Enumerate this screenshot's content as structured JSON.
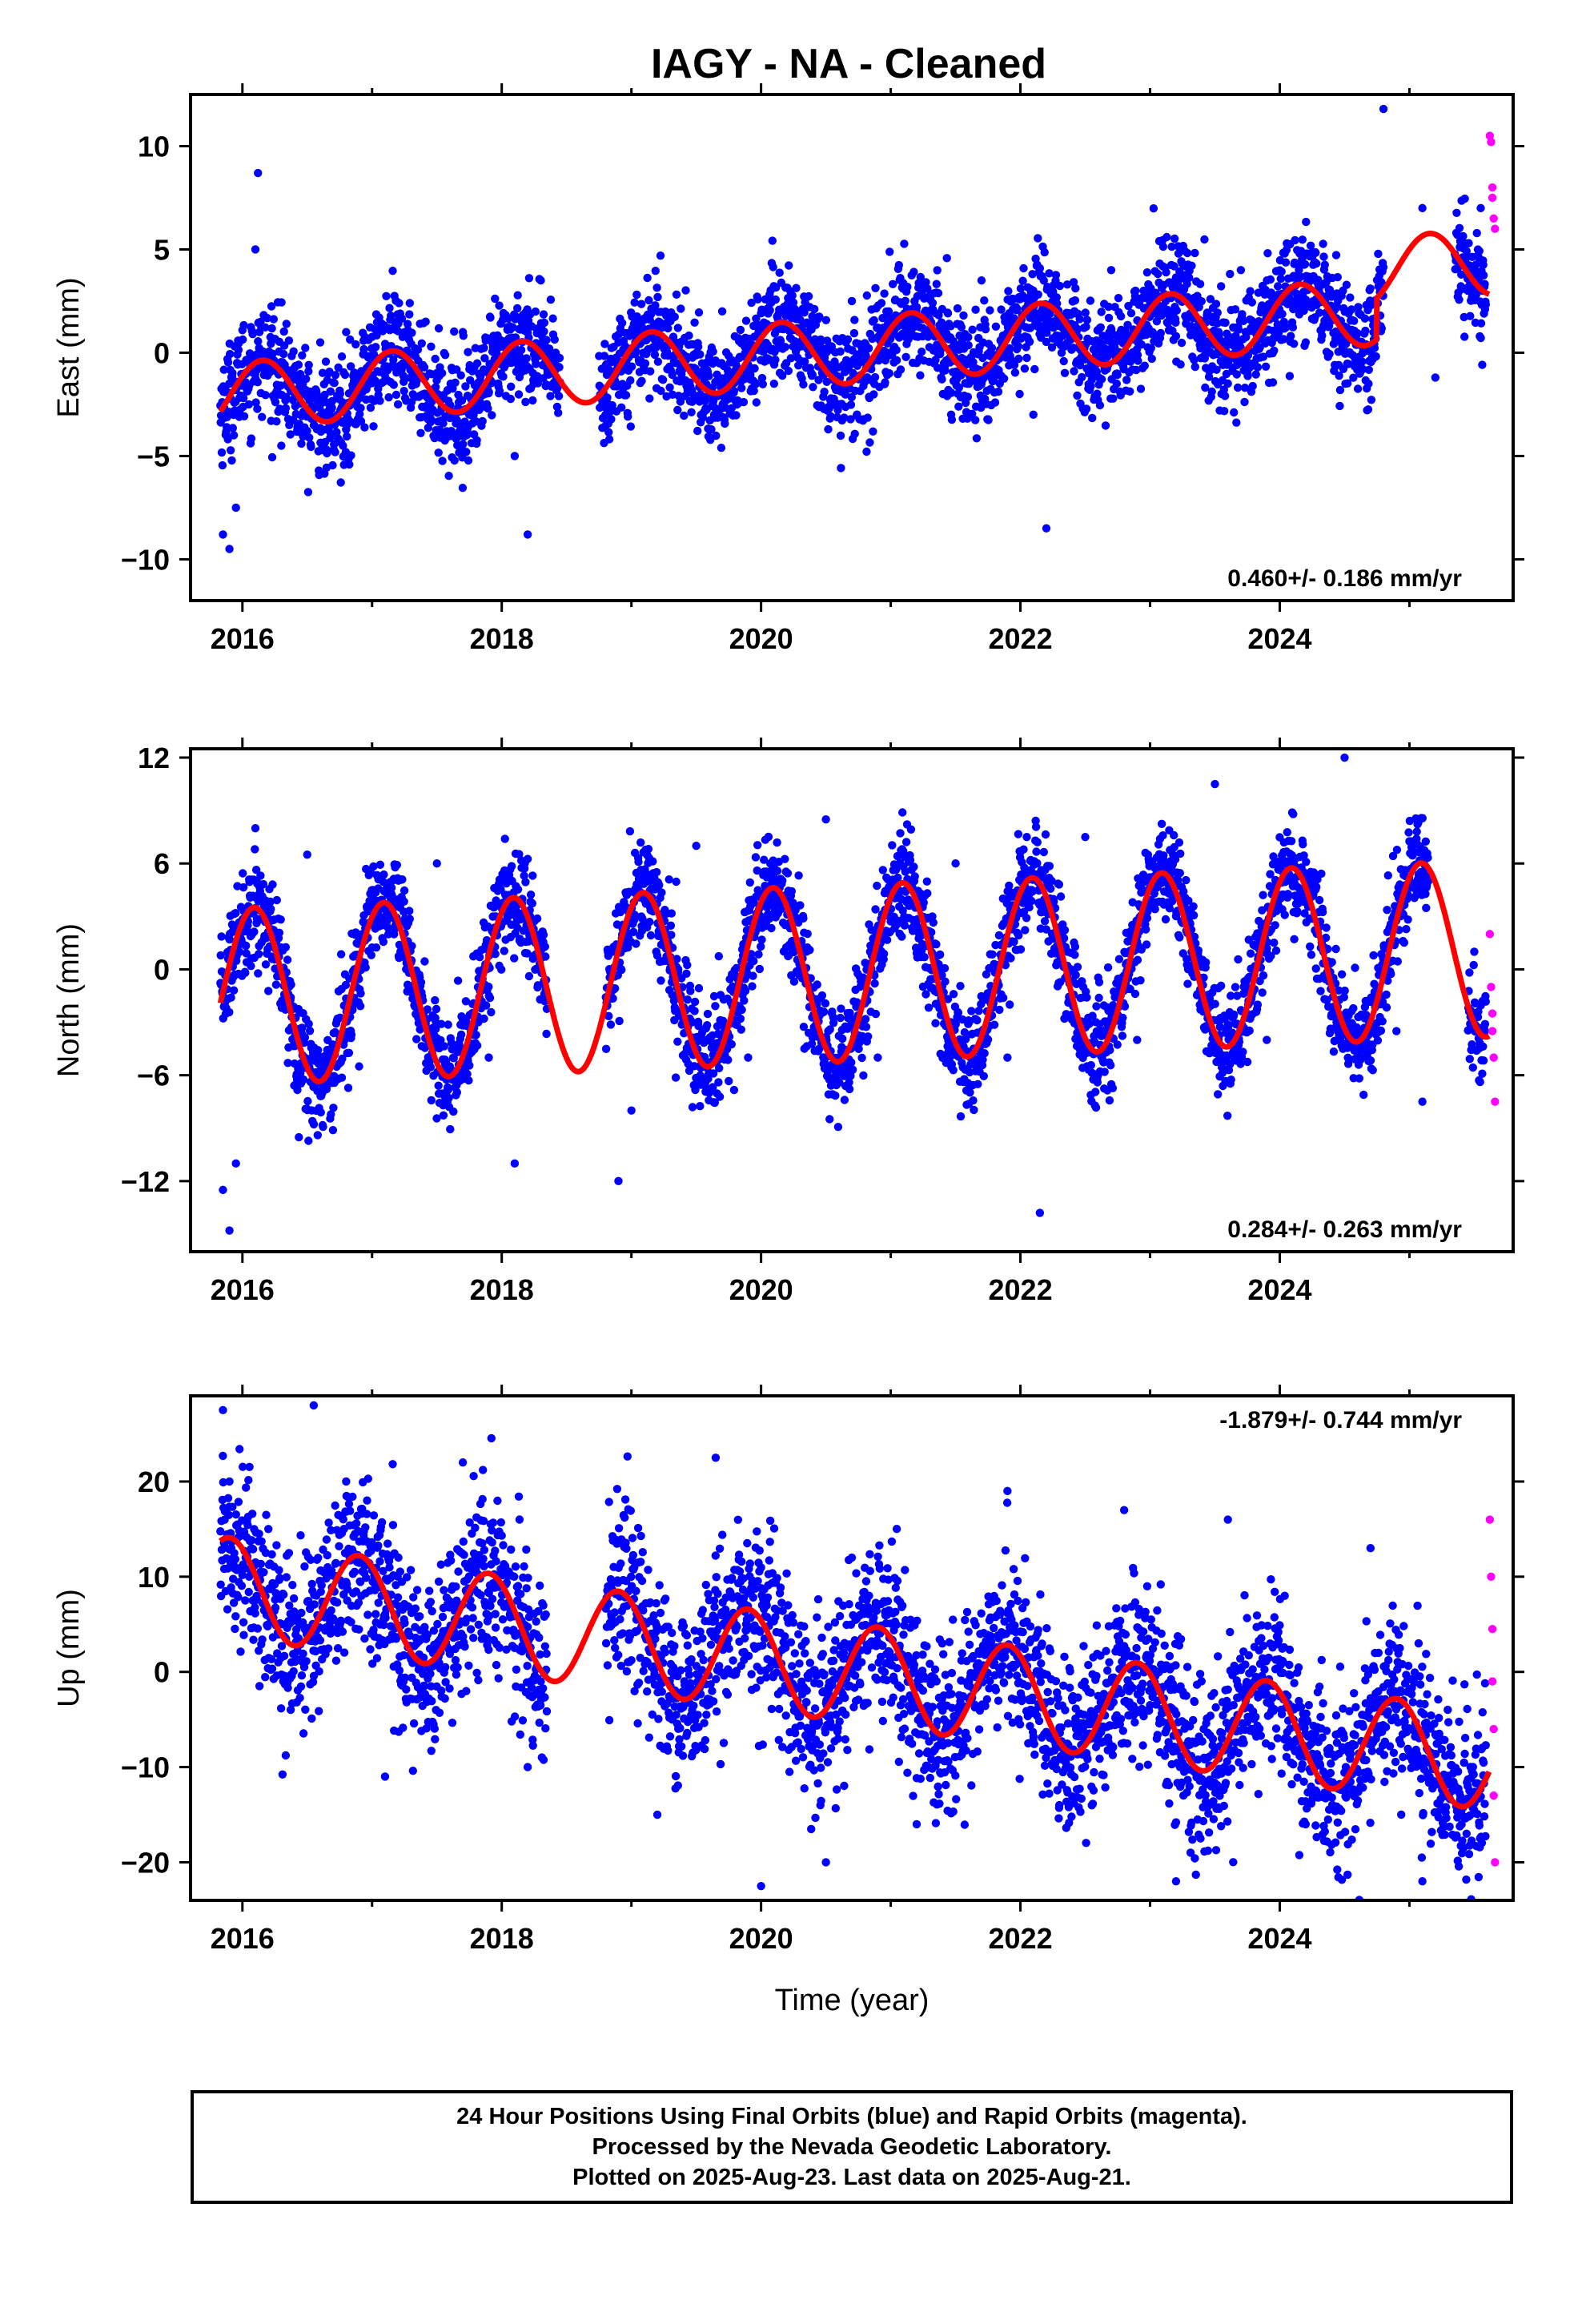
{
  "title": "IAGY  - NA - Cleaned",
  "colors": {
    "final": "#0000ff",
    "rapid": "#ff00ff",
    "model": "#ff0000",
    "axis": "#000000"
  },
  "footer": {
    "line1": "24 Hour Positions Using Final Orbits (blue) and Rapid Orbits (magenta).",
    "line2": "Processed by the Nevada Geodetic Laboratory.",
    "line3": "Plotted on 2025-Aug-23. Last data on 2025-Aug-21."
  },
  "chart_data": [
    {
      "type": "scatter",
      "id": "east",
      "ylabel": "East (mm)",
      "xlabel": "",
      "xlim": [
        2015.6,
        2025.8
      ],
      "ylim": [
        -12,
        12.5
      ],
      "yticks": [
        -10,
        -5,
        0,
        5,
        10
      ],
      "ytick_labels": [
        "−10",
        "−5",
        "0",
        "5",
        "10"
      ],
      "xticks": [
        2016,
        2018,
        2020,
        2022,
        2024
      ],
      "xtick_labels": [
        "2016",
        "2018",
        "2020",
        "2022",
        "2024"
      ],
      "rate": "0.460+/- 0.186 mm/yr",
      "rate_position": "bottom-right",
      "model": {
        "x0": 2020.0,
        "offset": -0.2,
        "slope": 0.46,
        "amp": 1.6,
        "phase": 0.6,
        "steps": [
          {
            "x": 2024.75,
            "dy": 2.0
          }
        ]
      },
      "gaps": [
        [
          2018.45,
          2018.75
        ],
        [
          2024.8,
          2025.35
        ]
      ],
      "data_span": [
        2015.83,
        2025.62
      ],
      "noise": 1.3,
      "final_points_sample": [
        [
          2015.85,
          -8.8
        ],
        [
          2015.9,
          -9.5
        ],
        [
          2015.95,
          -7.5
        ],
        [
          2016.05,
          -2.5
        ],
        [
          2016.1,
          5.0
        ],
        [
          2016.12,
          8.7
        ],
        [
          2016.3,
          -4.5
        ],
        [
          2016.6,
          0.5
        ],
        [
          2016.8,
          1.0
        ],
        [
          2017.2,
          -2.5
        ],
        [
          2017.7,
          1.0
        ],
        [
          2018.1,
          -5.0
        ],
        [
          2018.2,
          -8.8
        ],
        [
          2018.9,
          0.5
        ],
        [
          2019.7,
          2.0
        ],
        [
          2020.1,
          -1.5
        ],
        [
          2020.7,
          2.5
        ],
        [
          2021.2,
          -0.5
        ],
        [
          2021.7,
          3.5
        ],
        [
          2022.1,
          -3.0
        ],
        [
          2022.2,
          -8.5
        ],
        [
          2022.7,
          4.0
        ],
        [
          2023.2,
          0.8
        ],
        [
          2023.7,
          4.0
        ],
        [
          2024.2,
          0.5
        ],
        [
          2024.8,
          11.8
        ],
        [
          2025.1,
          7.0
        ],
        [
          2025.2,
          -1.2
        ],
        [
          2025.45,
          3.0
        ],
        [
          2025.55,
          7.0
        ]
      ],
      "rapid_points": [
        [
          2025.62,
          10.5
        ],
        [
          2025.63,
          10.2
        ],
        [
          2025.64,
          8.0
        ],
        [
          2025.64,
          7.5
        ],
        [
          2025.65,
          6.5
        ],
        [
          2025.66,
          6.0
        ]
      ]
    },
    {
      "type": "scatter",
      "id": "north",
      "ylabel": "North (mm)",
      "xlabel": "",
      "xlim": [
        2015.6,
        2025.8
      ],
      "ylim": [
        -16,
        12.5
      ],
      "yticks": [
        -12,
        -6,
        0,
        6,
        12
      ],
      "ytick_labels": [
        "−12",
        "−6",
        "0",
        "6",
        "12"
      ],
      "xticks": [
        2016,
        2018,
        2020,
        2022,
        2024
      ],
      "xtick_labels": [
        "2016",
        "2018",
        "2020",
        "2022",
        "2024"
      ],
      "rate": "0.284+/- 0.263 mm/yr",
      "rate_position": "bottom-right",
      "model": {
        "x0": 2020.0,
        "offset": -0.4,
        "slope": 0.28,
        "amp": 5.0,
        "phase": 1.0,
        "steps": []
      },
      "gaps": [
        [
          2018.35,
          2018.8
        ],
        [
          2025.15,
          2025.45
        ]
      ],
      "data_span": [
        2015.83,
        2025.62
      ],
      "noise": 1.5,
      "final_points_sample": [
        [
          2015.85,
          -12.5
        ],
        [
          2015.9,
          -14.8
        ],
        [
          2015.95,
          -11.0
        ],
        [
          2016.1,
          8.0
        ],
        [
          2016.5,
          6.5
        ],
        [
          2016.9,
          -5.5
        ],
        [
          2017.5,
          6.0
        ],
        [
          2017.9,
          -5.0
        ],
        [
          2018.1,
          -11.0
        ],
        [
          2018.9,
          -12.0
        ],
        [
          2019.0,
          -8.0
        ],
        [
          2019.5,
          7.0
        ],
        [
          2019.9,
          -5.0
        ],
        [
          2020.5,
          8.5
        ],
        [
          2020.9,
          -5.0
        ],
        [
          2021.5,
          6.0
        ],
        [
          2021.9,
          -5.0
        ],
        [
          2022.15,
          -13.8
        ],
        [
          2022.5,
          7.5
        ],
        [
          2022.9,
          -4.0
        ],
        [
          2023.5,
          10.5
        ],
        [
          2023.9,
          -4.0
        ],
        [
          2024.5,
          12.0
        ],
        [
          2024.9,
          -3.5
        ],
        [
          2025.1,
          -7.5
        ],
        [
          2025.5,
          1.0
        ]
      ],
      "rapid_points": [
        [
          2025.62,
          2.0
        ],
        [
          2025.63,
          -1.0
        ],
        [
          2025.64,
          -2.5
        ],
        [
          2025.64,
          -3.5
        ],
        [
          2025.65,
          -5.0
        ],
        [
          2025.66,
          -7.5
        ]
      ]
    },
    {
      "type": "scatter",
      "id": "up",
      "ylabel": "Up (mm)",
      "xlabel": "Time (year)",
      "xlim": [
        2015.6,
        2025.8
      ],
      "ylim": [
        -24,
        29
      ],
      "yticks": [
        -20,
        -10,
        0,
        10,
        20
      ],
      "ytick_labels": [
        "−20",
        "−10",
        "0",
        "10",
        "20"
      ],
      "xticks": [
        2016,
        2018,
        2020,
        2022,
        2024
      ],
      "xtick_labels": [
        "2016",
        "2018",
        "2020",
        "2022",
        "2024"
      ],
      "rate": "-1.879+/- 0.744 mm/yr",
      "rate_position": "top-right",
      "model": {
        "x0": 2020.0,
        "offset": 1.2,
        "slope": -1.879,
        "amp": 5.2,
        "phase": 2.2,
        "steps": []
      },
      "gaps": [
        [
          2018.35,
          2018.8
        ]
      ],
      "data_span": [
        2015.83,
        2025.62
      ],
      "noise": 4.5,
      "final_points_sample": [
        [
          2015.85,
          27.5
        ],
        [
          2015.9,
          20.0
        ],
        [
          2016.2,
          5.0
        ],
        [
          2016.55,
          28.0
        ],
        [
          2016.8,
          20.0
        ],
        [
          2017.1,
          -11.0
        ],
        [
          2017.7,
          22.0
        ],
        [
          2018.2,
          -10.0
        ],
        [
          2019.2,
          -15.0
        ],
        [
          2019.65,
          22.5
        ],
        [
          2020.0,
          -22.5
        ],
        [
          2020.5,
          -20.0
        ],
        [
          2020.7,
          12.0
        ],
        [
          2021.2,
          -16.0
        ],
        [
          2021.9,
          19.0
        ],
        [
          2022.3,
          -14.0
        ],
        [
          2022.8,
          17.0
        ],
        [
          2023.2,
          -22.0
        ],
        [
          2023.6,
          16.0
        ],
        [
          2024.2,
          -16.0
        ],
        [
          2024.7,
          13.0
        ],
        [
          2025.1,
          -22.0
        ],
        [
          2025.45,
          -12.0
        ]
      ],
      "rapid_points": [
        [
          2025.62,
          16.0
        ],
        [
          2025.63,
          10.0
        ],
        [
          2025.64,
          4.5
        ],
        [
          2025.64,
          -1.0
        ],
        [
          2025.65,
          -6.0
        ],
        [
          2025.65,
          -13.0
        ],
        [
          2025.66,
          -20.0
        ]
      ]
    }
  ]
}
